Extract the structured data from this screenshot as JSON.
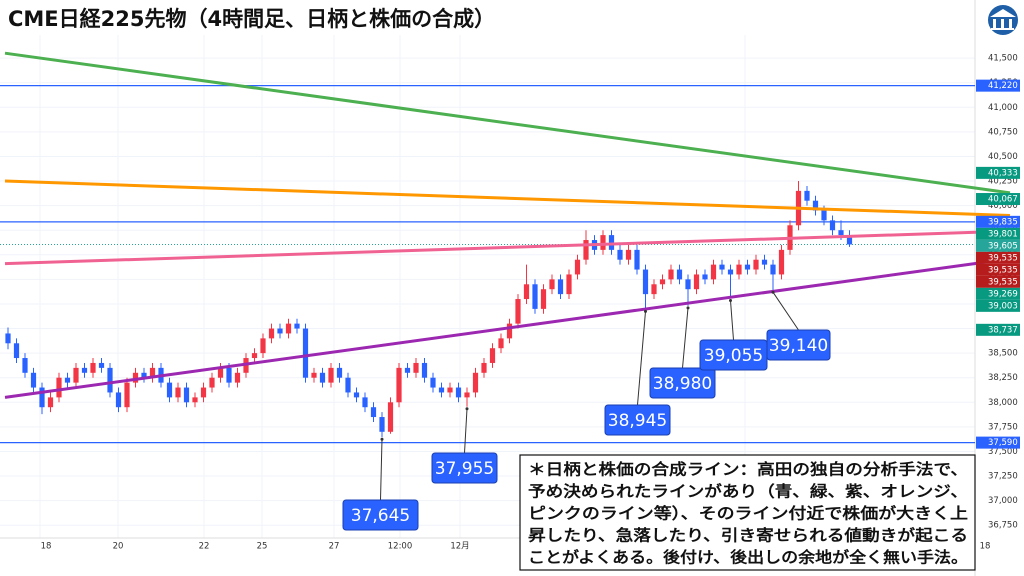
{
  "chart_data": {
    "type": "candlestick",
    "title": "CME日経225先物（4時間足、日柄と株価の合成）",
    "up_color": "#f23645",
    "down_color": "#2962ff",
    "ylim": [
      36620,
      41735
    ],
    "yticks": [
      {
        "value": 36750,
        "label": "36,750"
      },
      {
        "value": 37000,
        "label": "37,000"
      },
      {
        "value": 37250,
        "label": "37,250"
      },
      {
        "value": 37500,
        "label": "37,500"
      },
      {
        "value": 37750,
        "label": "37,750"
      },
      {
        "value": 38000,
        "label": "38,000"
      },
      {
        "value": 38250,
        "label": "38,250"
      },
      {
        "value": 38500,
        "label": "38,500"
      },
      {
        "value": 38750,
        "label": "38,750"
      },
      {
        "value": 39000,
        "label": "39,000"
      },
      {
        "value": 39250,
        "label": "39,250"
      },
      {
        "value": 39500,
        "label": "39,500"
      },
      {
        "value": 39750,
        "label": "39,750"
      },
      {
        "value": 40000,
        "label": "40,000"
      },
      {
        "value": 40250,
        "label": "40,250"
      },
      {
        "value": 40500,
        "label": "40,500"
      },
      {
        "value": 40750,
        "label": "40,750"
      },
      {
        "value": 41000,
        "label": "41,000"
      },
      {
        "value": 41250,
        "label": "41,250"
      },
      {
        "value": 41500,
        "label": "41,500"
      }
    ],
    "x_labels": [
      "18",
      "20",
      "22",
      "25",
      "27",
      "12:00",
      "12月",
      "18"
    ],
    "candles": [
      [
        38700,
        38760,
        38540,
        38600
      ],
      [
        38600,
        38650,
        38400,
        38450
      ],
      [
        38450,
        38500,
        38250,
        38300
      ],
      [
        38300,
        38350,
        38100,
        38150
      ],
      [
        38150,
        38200,
        37880,
        37950
      ],
      [
        37950,
        38100,
        37900,
        38050
      ],
      [
        38050,
        38300,
        38000,
        38250
      ],
      [
        38250,
        38300,
        38150,
        38200
      ],
      [
        38200,
        38400,
        38150,
        38350
      ],
      [
        38350,
        38400,
        38250,
        38300
      ],
      [
        38300,
        38450,
        38250,
        38400
      ],
      [
        38400,
        38450,
        38300,
        38350
      ],
      [
        38350,
        38400,
        38050,
        38100
      ],
      [
        38100,
        38150,
        37900,
        37950
      ],
      [
        37950,
        38250,
        37900,
        38200
      ],
      [
        38200,
        38350,
        38150,
        38300
      ],
      [
        38300,
        38350,
        38200,
        38250
      ],
      [
        38250,
        38400,
        38200,
        38350
      ],
      [
        38350,
        38400,
        38150,
        38200
      ],
      [
        38200,
        38250,
        38000,
        38050
      ],
      [
        38050,
        38200,
        38000,
        38150
      ],
      [
        38150,
        38200,
        37950,
        38000
      ],
      [
        38000,
        38100,
        37950,
        38050
      ],
      [
        38050,
        38200,
        38000,
        38150
      ],
      [
        38150,
        38300,
        38100,
        38250
      ],
      [
        38250,
        38400,
        38200,
        38350
      ],
      [
        38350,
        38400,
        38150,
        38200
      ],
      [
        38200,
        38350,
        38150,
        38300
      ],
      [
        38300,
        38500,
        38250,
        38450
      ],
      [
        38450,
        38550,
        38400,
        38500
      ],
      [
        38500,
        38700,
        38450,
        38650
      ],
      [
        38650,
        38800,
        38600,
        38750
      ],
      [
        38750,
        38800,
        38650,
        38700
      ],
      [
        38700,
        38850,
        38650,
        38800
      ],
      [
        38800,
        38850,
        38700,
        38750
      ],
      [
        38750,
        38800,
        38200,
        38250
      ],
      [
        38250,
        38350,
        38200,
        38300
      ],
      [
        38300,
        38350,
        38150,
        38200
      ],
      [
        38200,
        38400,
        38150,
        38350
      ],
      [
        38350,
        38400,
        38200,
        38250
      ],
      [
        38250,
        38300,
        38050,
        38100
      ],
      [
        38100,
        38150,
        38000,
        38050
      ],
      [
        38050,
        38100,
        37900,
        37950
      ],
      [
        37950,
        38000,
        37800,
        37850
      ],
      [
        37850,
        37900,
        37645,
        37700
      ],
      [
        37700,
        38050,
        37680,
        38000
      ],
      [
        38000,
        38400,
        37950,
        38350
      ],
      [
        38350,
        38400,
        38250,
        38300
      ],
      [
        38300,
        38450,
        38250,
        38400
      ],
      [
        38400,
        38450,
        38200,
        38250
      ],
      [
        38250,
        38300,
        38100,
        38150
      ],
      [
        38150,
        38200,
        38050,
        38100
      ],
      [
        38100,
        38200,
        38050,
        38150
      ],
      [
        38150,
        38200,
        38000,
        38050
      ],
      [
        38050,
        38150,
        37955,
        38100
      ],
      [
        38100,
        38350,
        38050,
        38300
      ],
      [
        38300,
        38450,
        38250,
        38400
      ],
      [
        38400,
        38600,
        38350,
        38550
      ],
      [
        38550,
        38700,
        38500,
        38650
      ],
      [
        38650,
        38850,
        38600,
        38800
      ],
      [
        38800,
        39100,
        38750,
        39050
      ],
      [
        39050,
        39400,
        39000,
        39200
      ],
      [
        39200,
        39250,
        38900,
        38950
      ],
      [
        38950,
        39200,
        38900,
        39150
      ],
      [
        39150,
        39300,
        39100,
        39250
      ],
      [
        39250,
        39300,
        39050,
        39100
      ],
      [
        39100,
        39350,
        39050,
        39300
      ],
      [
        39300,
        39500,
        39250,
        39450
      ],
      [
        39450,
        39750,
        39400,
        39650
      ],
      [
        39650,
        39700,
        39500,
        39550
      ],
      [
        39550,
        39750,
        39500,
        39700
      ],
      [
        39700,
        39750,
        39500,
        39550
      ],
      [
        39550,
        39600,
        39400,
        39450
      ],
      [
        39450,
        39600,
        39400,
        39550
      ],
      [
        39550,
        39600,
        39300,
        39350
      ],
      [
        39350,
        39400,
        38945,
        39100
      ],
      [
        39100,
        39250,
        39050,
        39200
      ],
      [
        39200,
        39300,
        39150,
        39250
      ],
      [
        39250,
        39400,
        39200,
        39350
      ],
      [
        39350,
        39400,
        39200,
        39250
      ],
      [
        39250,
        39300,
        38980,
        39150
      ],
      [
        39150,
        39350,
        39100,
        39300
      ],
      [
        39300,
        39350,
        39200,
        39250
      ],
      [
        39250,
        39450,
        39200,
        39400
      ],
      [
        39400,
        39450,
        39300,
        39350
      ],
      [
        39350,
        39400,
        39055,
        39300
      ],
      [
        39300,
        39450,
        39250,
        39400
      ],
      [
        39400,
        39450,
        39300,
        39350
      ],
      [
        39350,
        39500,
        39300,
        39450
      ],
      [
        39450,
        39500,
        39350,
        39400
      ],
      [
        39400,
        39450,
        39140,
        39300
      ],
      [
        39300,
        39600,
        39250,
        39550
      ],
      [
        39550,
        39850,
        39500,
        39800
      ],
      [
        39800,
        40250,
        39750,
        40150
      ],
      [
        40150,
        40200,
        40000,
        40050
      ],
      [
        40050,
        40100,
        39900,
        39950
      ],
      [
        39950,
        40000,
        39800,
        39850
      ],
      [
        39850,
        39900,
        39700,
        39750
      ],
      [
        39750,
        39850,
        39650,
        39700
      ],
      [
        39700,
        39750,
        39580,
        39605
      ]
    ],
    "lines": [
      {
        "color": "#4caf50",
        "values": [
          41550,
          40130
        ]
      },
      {
        "color": "#ff9800",
        "values": [
          40250,
          39900
        ]
      },
      {
        "color": "#f06292",
        "values": [
          39410,
          39740
        ]
      },
      {
        "color": "#9c27b0",
        "values": [
          38050,
          39460
        ]
      }
    ],
    "hlines": [
      {
        "color": "#2962ff",
        "value": 41220
      },
      {
        "color": "#2962ff",
        "value": 39835
      },
      {
        "color": "#2962ff",
        "value": 37590
      }
    ],
    "price_tags": [
      {
        "value": 41220,
        "label": "41,220",
        "color": "#2962ff"
      },
      {
        "value": 40333,
        "label": "40,333",
        "color": "#089981"
      },
      {
        "value": 40067,
        "label": "40,067",
        "color": "#089981"
      },
      {
        "value": 39835,
        "label": "39,835",
        "color": "#2962ff"
      },
      {
        "value": 39801,
        "label": "39,801",
        "color": "#089981"
      },
      {
        "value": 39605,
        "label": "39,605",
        "color": "#26a69a"
      },
      {
        "value": 39535,
        "label": "39,535",
        "color": "#b71c1c"
      },
      {
        "value": 39535,
        "label": "39,535",
        "color": "#b71c1c"
      },
      {
        "value": 39535,
        "label": "39,535",
        "color": "#b71c1c"
      },
      {
        "value": 39269,
        "label": "39,269",
        "color": "#089981"
      },
      {
        "value": 39003,
        "label": "39,003",
        "color": "#089981"
      },
      {
        "value": 38737,
        "label": "38,737",
        "color": "#089981"
      },
      {
        "value": 37590,
        "label": "37,590",
        "color": "#2962ff"
      }
    ],
    "annotations": [
      {
        "value": 37645,
        "label": "37,645"
      },
      {
        "value": 37955,
        "label": "37,955"
      },
      {
        "value": 38945,
        "label": "38,945"
      },
      {
        "value": 38980,
        "label": "38,980"
      },
      {
        "value": 39055,
        "label": "39,055"
      },
      {
        "value": 39140,
        "label": "39,140"
      }
    ],
    "note": [
      "＊日柄と株価の合成ライン：高田の独自の分析手法で、",
      "予め決められたラインがあり（青、緑、紫、オレンジ、",
      "ピンクのライン等）、そのライン付近で株価が大きく上",
      "昇したり、急落したり、引き寄せられる値動きが起こる",
      "ことがよくある。後付け、後出しの余地が全く無い手法。"
    ]
  }
}
